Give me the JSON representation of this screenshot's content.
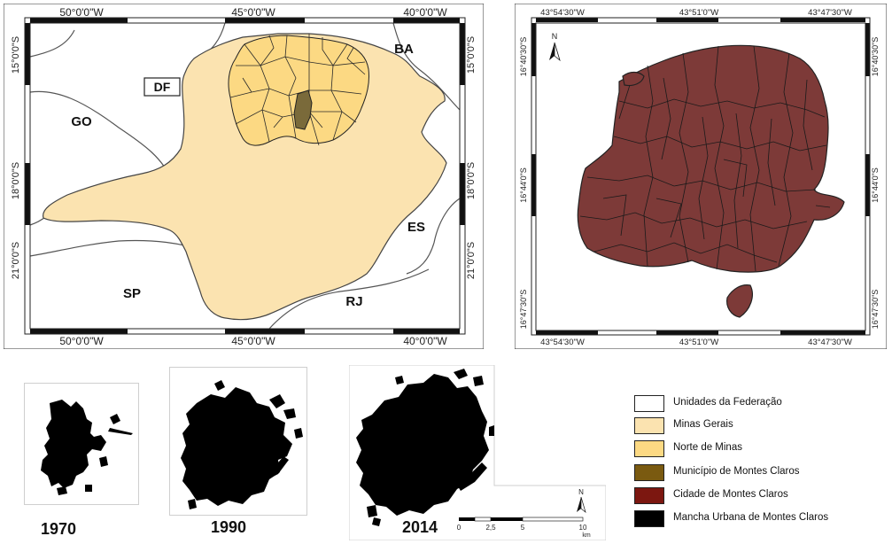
{
  "map_brazil": {
    "coords_top": [
      "50°0'0\"W",
      "45°0'0\"W",
      "40°0'0\"W"
    ],
    "coords_bottom": [
      "50°0'0\"W",
      "45°0'0\"W",
      "40°0'0\"W"
    ],
    "coords_left": [
      "15°0'0\"S",
      "18°0'0\"S",
      "21°0'0\"S"
    ],
    "coords_right": [
      "15°0'0\"S",
      "18°0'0\"S",
      "21°0'0\"S"
    ],
    "states": {
      "df": "DF",
      "go": "GO",
      "ba": "BA",
      "es": "ES",
      "sp": "SP",
      "rj": "RJ"
    }
  },
  "map_city": {
    "coords_top": [
      "43°54'30\"W",
      "43°51'0\"W",
      "43°47'30\"W"
    ],
    "coords_bottom": [
      "43°54'30\"W",
      "43°51'0\"W",
      "43°47'30\"W"
    ],
    "coords_left": [
      "16°40'30\"S",
      "16°44'0\"S",
      "16°47'30\"S"
    ],
    "coords_right": [
      "16°40'30\"S",
      "16°44'0\"S",
      "16°47'30\"S"
    ],
    "north": "N"
  },
  "urban": {
    "years": [
      "1970",
      "1990",
      "2014"
    ]
  },
  "scale": {
    "north": "N",
    "ticks": [
      "0",
      "2,5",
      "5",
      "10"
    ],
    "unit": "km"
  },
  "legend": {
    "items": [
      {
        "label": "Unidades da Federação",
        "color": "#ffffff"
      },
      {
        "label": "Minas Gerais",
        "color": "#fbe3b0"
      },
      {
        "label": "Norte de Minas",
        "color": "#fcd983"
      },
      {
        "label": "Município de Montes Claros",
        "color": "#7a5a10"
      },
      {
        "label": "Cidade de Montes Claros",
        "color": "#7c1710"
      },
      {
        "label": "Mancha Urbana de Montes Claros",
        "color": "#000000"
      }
    ]
  }
}
